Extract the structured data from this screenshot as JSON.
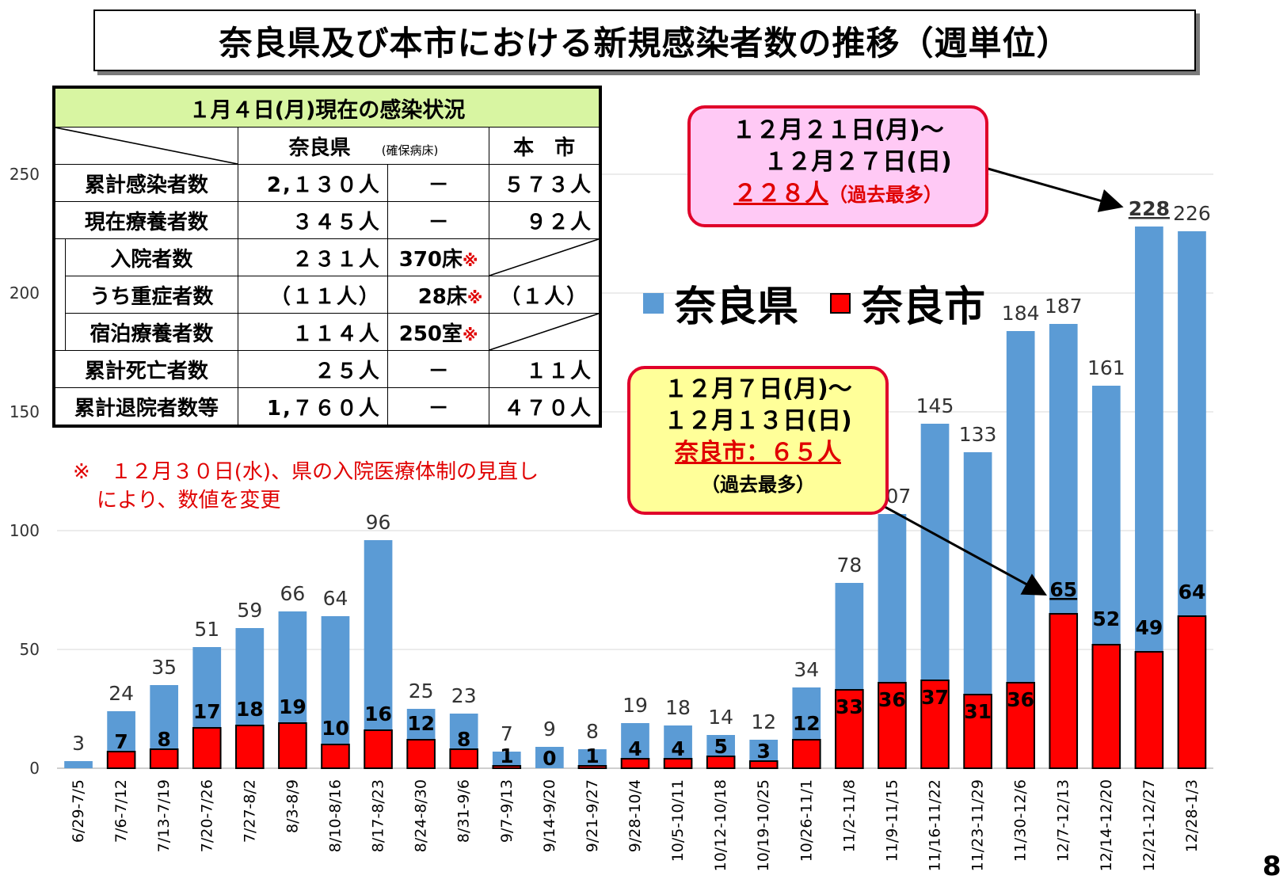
{
  "title": "奈良県及び本市における新規感染者数の推移（週単位）",
  "status_table": {
    "header": "１月４日(月)現在の感染状況",
    "col_pref": "奈良県",
    "col_beds": "(確保病床)",
    "col_city": "本　市",
    "rows": [
      {
        "label": "累計感染者数",
        "pref": "2,１３０人",
        "beds": "－",
        "city": "５７３人"
      },
      {
        "label": "現在療養者数",
        "pref": "３４５人",
        "beds": "－",
        "city": "９２人"
      },
      {
        "label": "入院者数",
        "pref": "２３１人",
        "beds": "370床",
        "beds_note": "※",
        "city": ""
      },
      {
        "label": "うち重症者数",
        "pref": "（１１人）",
        "beds": "28床",
        "beds_note": "※",
        "city": "（１人）"
      },
      {
        "label": "宿泊療養者数",
        "pref": "１１４人",
        "beds": "250室",
        "beds_note": "※",
        "city": ""
      },
      {
        "label": "累計死亡者数",
        "pref": "２５人",
        "beds": "－",
        "city": "１１人"
      },
      {
        "label": "累計退院者数等",
        "pref": "1,７６０人",
        "beds": "－",
        "city": "４７０人"
      }
    ]
  },
  "footnote": {
    "line1": "※　１２月３０日(水)、県の入院医療体制の見直し",
    "line2": "により、数値を変更"
  },
  "callout_max_pref": {
    "line1": "１２月２１日(月)～",
    "line2": "１２月２７日(日)",
    "value": "２２８人",
    "note": "（過去最多）"
  },
  "callout_max_city": {
    "line1": "１２月７日(月)～",
    "line2": "１２月１３日(日)",
    "value": "奈良市：６５人",
    "note": "（過去最多）"
  },
  "legend": {
    "pref": "奈良県",
    "city": "奈良市"
  },
  "page_number": "8",
  "colors": {
    "pref": "#5b9bd5",
    "city": "#ff0000"
  },
  "chart_data": {
    "type": "bar",
    "categories": [
      "6/29-7/5",
      "7/6-7/12",
      "7/13-7/19",
      "7/20-7/26",
      "7/27-8/2",
      "8/3-8/9",
      "8/10-8/16",
      "8/17-8/23",
      "8/24-8/30",
      "8/31-9/6",
      "9/7-9/13",
      "9/14-9/20",
      "9/21-9/27",
      "9/28-10/4",
      "10/5-10/11",
      "10/12-10/18",
      "10/19-10/25",
      "10/26-11/1",
      "11/2-11/8",
      "11/9-11/15",
      "11/16-11/22",
      "11/23-11/29",
      "11/30-12/6",
      "12/7-12/13",
      "12/14-12/20",
      "12/21-12/27",
      "12/28-1/3"
    ],
    "series": [
      {
        "name": "奈良県",
        "values": [
          3,
          24,
          35,
          51,
          59,
          66,
          64,
          96,
          25,
          23,
          7,
          9,
          8,
          19,
          18,
          14,
          12,
          34,
          78,
          107,
          145,
          133,
          184,
          187,
          161,
          228,
          226
        ]
      },
      {
        "name": "奈良市",
        "values": [
          null,
          7,
          8,
          17,
          18,
          19,
          10,
          16,
          12,
          8,
          1,
          0,
          1,
          4,
          4,
          5,
          3,
          12,
          33,
          36,
          37,
          31,
          36,
          65,
          52,
          49,
          64
        ]
      }
    ],
    "yticks": [
      0,
      50,
      100,
      150,
      200,
      250
    ],
    "ylim": [
      0,
      250
    ],
    "grid": true
  }
}
